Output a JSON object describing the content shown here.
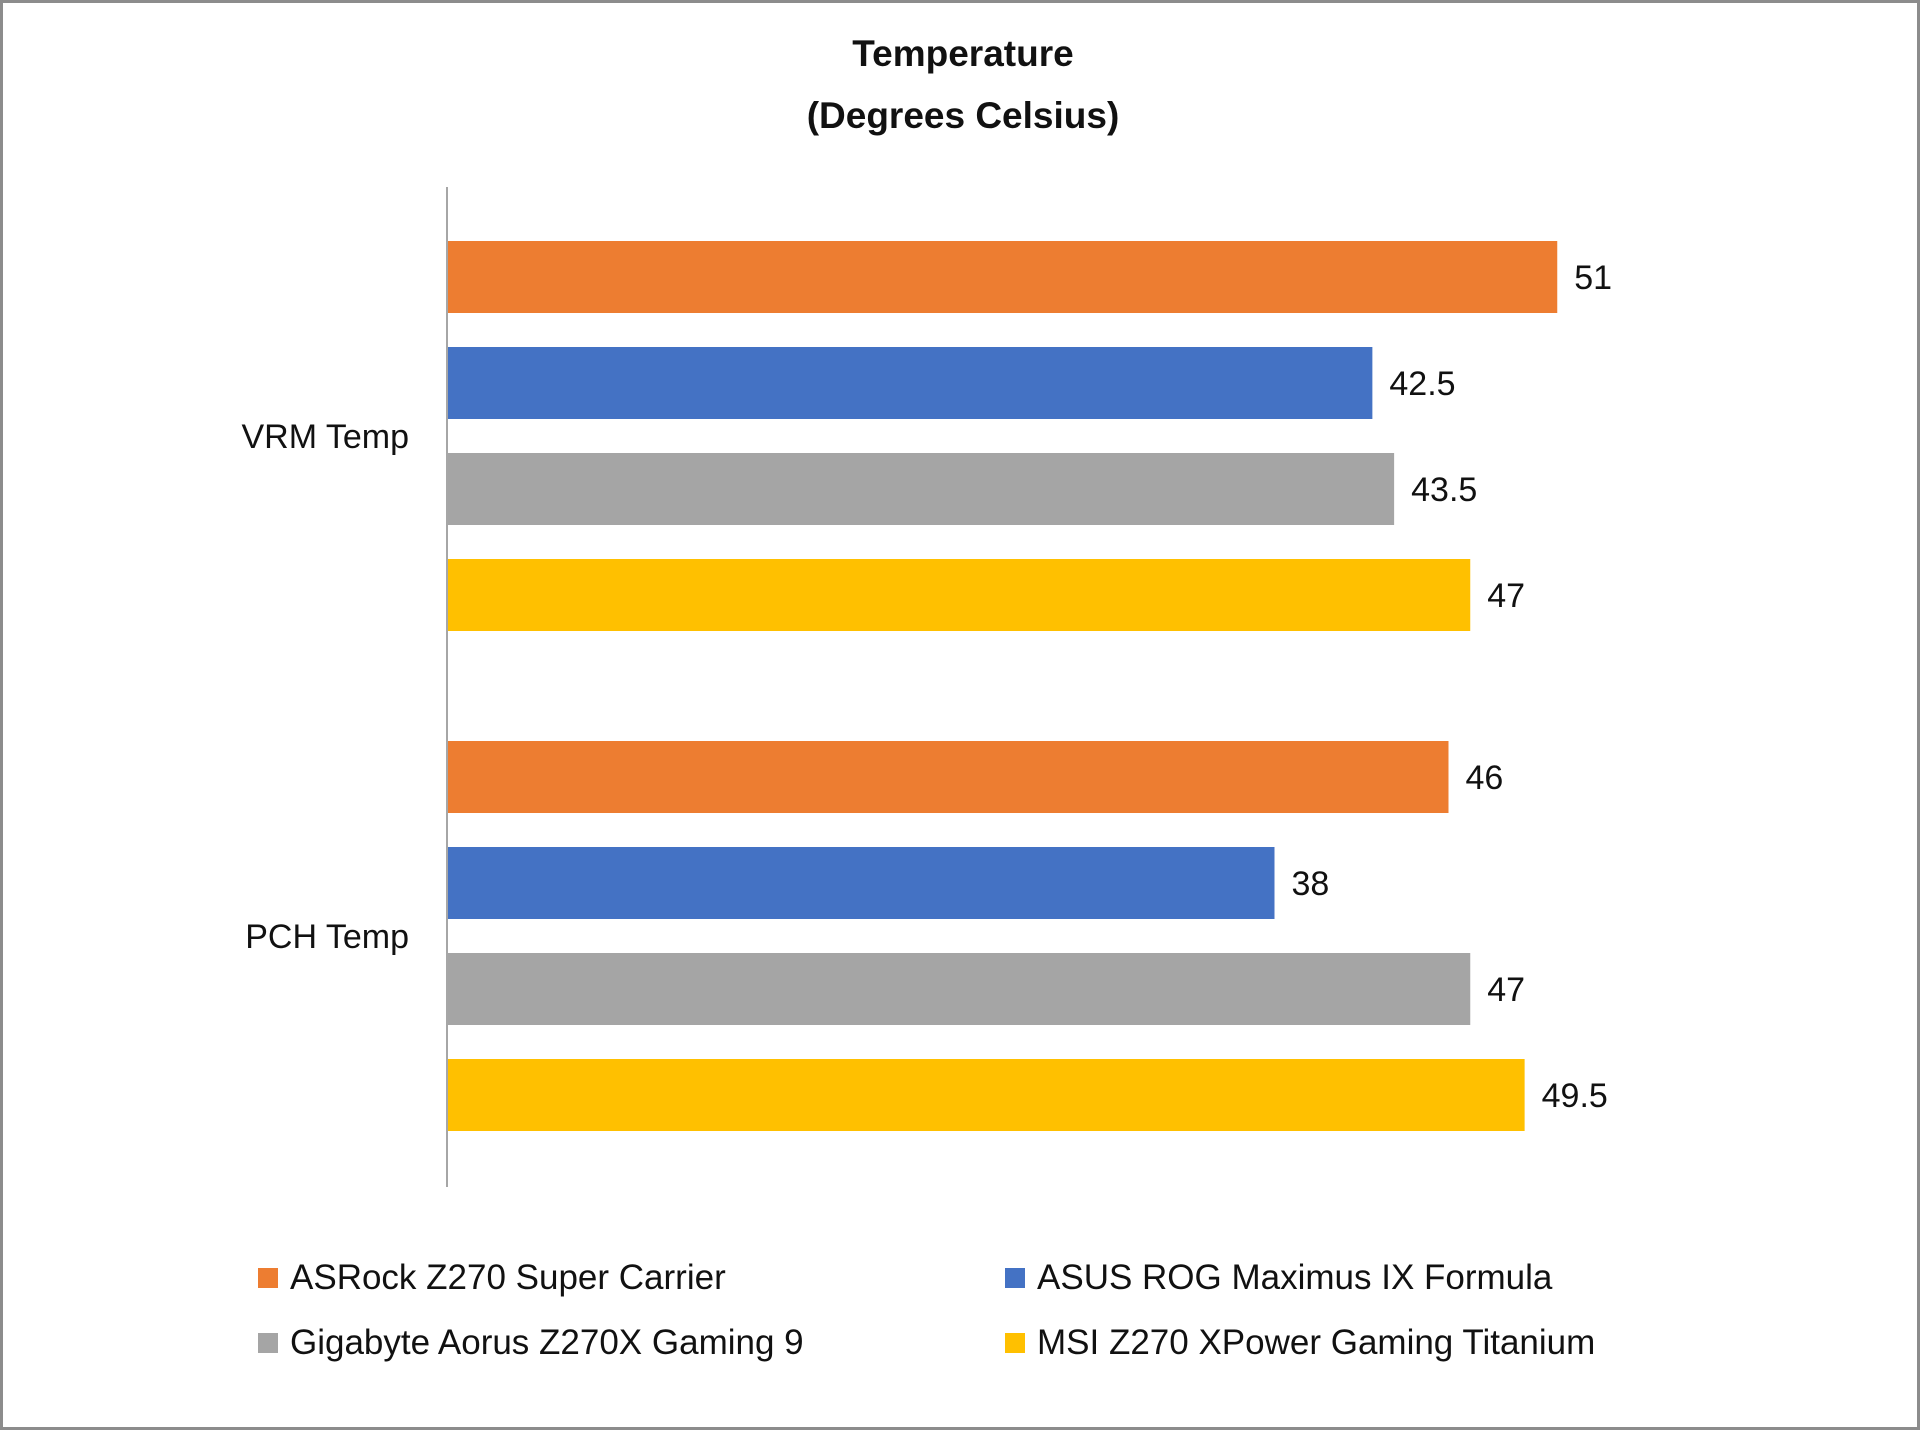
{
  "chart_data": {
    "type": "bar",
    "orientation": "horizontal",
    "title": "Temperature",
    "subtitle": "(Degrees Celsius)",
    "xlabel": "",
    "ylabel": "",
    "categories": [
      "VRM Temp",
      "PCH Temp"
    ],
    "series": [
      {
        "name": "ASRock Z270 Super Carrier",
        "color": "#ED7D31",
        "values": [
          51,
          46
        ],
        "labels": [
          "51",
          "46"
        ]
      },
      {
        "name": "ASUS ROG Maximus IX Formula",
        "color": "#4472C4",
        "values": [
          42.5,
          38
        ],
        "labels": [
          "42.5",
          "38"
        ]
      },
      {
        "name": "Gigabyte Aorus Z270X Gaming 9",
        "color": "#A5A5A5",
        "values": [
          43.5,
          47
        ],
        "labels": [
          "43.5",
          "47"
        ]
      },
      {
        "name": "MSI Z270 XPower Gaming Titanium",
        "color": "#FFC000",
        "values": [
          47,
          49.5
        ],
        "labels": [
          "47",
          "49.5"
        ]
      }
    ],
    "xlim": [
      0,
      51
    ],
    "grid": false,
    "data_labels": true,
    "legend_position": "bottom"
  }
}
